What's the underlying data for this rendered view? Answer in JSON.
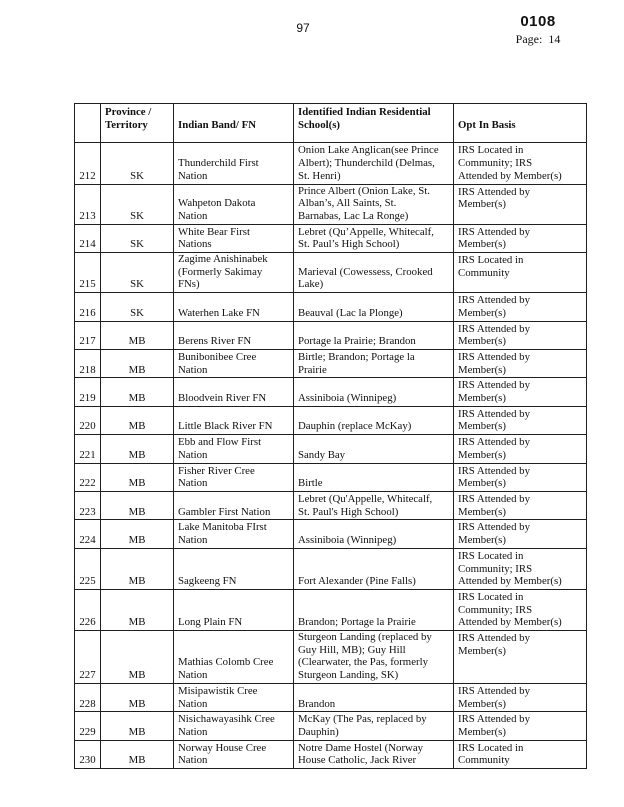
{
  "page_header": {
    "page_number_center": "97",
    "stamp_number": "0108",
    "page_label": "Page:  14"
  },
  "table": {
    "columns": [
      "",
      "Province /\nTerritory",
      "Indian Band/ FN",
      "Identified Indian Residential\nSchool(s)",
      "Opt In Basis"
    ],
    "rows": [
      {
        "num": "212",
        "province": "SK",
        "band": "Thunderchild First\nNation",
        "schools": "Onion Lake Anglican(see Prince\nAlbert); Thunderchild (Delmas,\nSt. Henri)",
        "opt_in": "IRS Located in\nCommunity; IRS\nAttended by Member(s)"
      },
      {
        "num": "213",
        "province": "SK",
        "band": "Wahpeton Dakota\nNation",
        "schools": "Prince Albert (Onion Lake, St.\nAlban’s, All Saints, St.\nBarnabas, Lac La Ronge)",
        "opt_in": "IRS Attended by\nMember(s)"
      },
      {
        "num": "214",
        "province": "SK",
        "band": "White Bear First\nNations",
        "schools": "Lebret (Qu’Appelle, Whitecalf,\nSt. Paul’s High School)",
        "opt_in": "IRS Attended by\nMember(s)"
      },
      {
        "num": "215",
        "province": "SK",
        "band": "Zagime Anishinabek\n(Formerly Sakimay\nFNs)",
        "schools": "Marieval (Cowessess, Crooked\nLake)",
        "opt_in": "IRS Located in\nCommunity"
      },
      {
        "num": "216",
        "province": "SK",
        "band": "Waterhen Lake FN",
        "schools": "Beauval (Lac la Plonge)",
        "opt_in": "IRS Attended by\nMember(s)"
      },
      {
        "num": "217",
        "province": "MB",
        "band": "Berens River FN",
        "schools": "Portage la Prairie; Brandon",
        "opt_in": "IRS Attended by\nMember(s)"
      },
      {
        "num": "218",
        "province": "MB",
        "band": "Bunibonibee Cree\nNation",
        "schools": "Birtle; Brandon; Portage la\nPrairie",
        "opt_in": "IRS Attended by\nMember(s)"
      },
      {
        "num": "219",
        "province": "MB",
        "band": "Bloodvein River FN",
        "schools": "Assiniboia (Winnipeg)",
        "opt_in": "IRS Attended by\nMember(s)"
      },
      {
        "num": "220",
        "province": "MB",
        "band": "Little Black River FN",
        "schools": "Dauphin (replace McKay)",
        "opt_in": "IRS Attended by\nMember(s)"
      },
      {
        "num": "221",
        "province": "MB",
        "band": "Ebb and Flow First\nNation",
        "schools": "Sandy Bay",
        "opt_in": "IRS Attended by\nMember(s)"
      },
      {
        "num": "222",
        "province": "MB",
        "band": "Fisher River Cree\nNation",
        "schools": "Birtle",
        "opt_in": "IRS Attended by\nMember(s)"
      },
      {
        "num": "223",
        "province": "MB",
        "band": "Gambler First Nation",
        "schools": "Lebret (Qu'Appelle, Whitecalf,\nSt. Paul's High School)",
        "opt_in": "IRS Attended by\nMember(s)"
      },
      {
        "num": "224",
        "province": "MB",
        "band": "Lake Manitoba FIrst\nNation",
        "schools": "Assiniboia (Winnipeg)",
        "opt_in": "IRS Attended by\nMember(s)"
      },
      {
        "num": "225",
        "province": "MB",
        "band": "Sagkeeng FN",
        "schools": "Fort Alexander (Pine Falls)",
        "opt_in": "IRS Located in\nCommunity; IRS\nAttended by Member(s)"
      },
      {
        "num": "226",
        "province": "MB",
        "band": "Long Plain FN",
        "schools": "Brandon; Portage la Prairie",
        "opt_in": "IRS Located in\nCommunity; IRS\nAttended by Member(s)"
      },
      {
        "num": "227",
        "province": "MB",
        "band": "Mathias Colomb Cree\nNation",
        "schools": "Sturgeon Landing (replaced by\nGuy Hill, MB); Guy Hill\n(Clearwater, the Pas, formerly\nSturgeon Landing, SK)",
        "opt_in": "IRS Attended by\nMember(s)"
      },
      {
        "num": "228",
        "province": "MB",
        "band": "Misipawistik Cree\nNation",
        "schools": "Brandon",
        "opt_in": "IRS Attended by\nMember(s)"
      },
      {
        "num": "229",
        "province": "MB",
        "band": "Nisichawayasihk Cree\nNation",
        "schools": "McKay (The Pas, replaced by\nDauphin)",
        "opt_in": "IRS Attended by\nMember(s)"
      },
      {
        "num": "230",
        "province": "MB",
        "band": "Norway House Cree\nNation",
        "schools": "Notre Dame Hostel (Norway\nHouse Catholic, Jack River",
        "opt_in": "IRS Located in\nCommunity"
      }
    ]
  }
}
